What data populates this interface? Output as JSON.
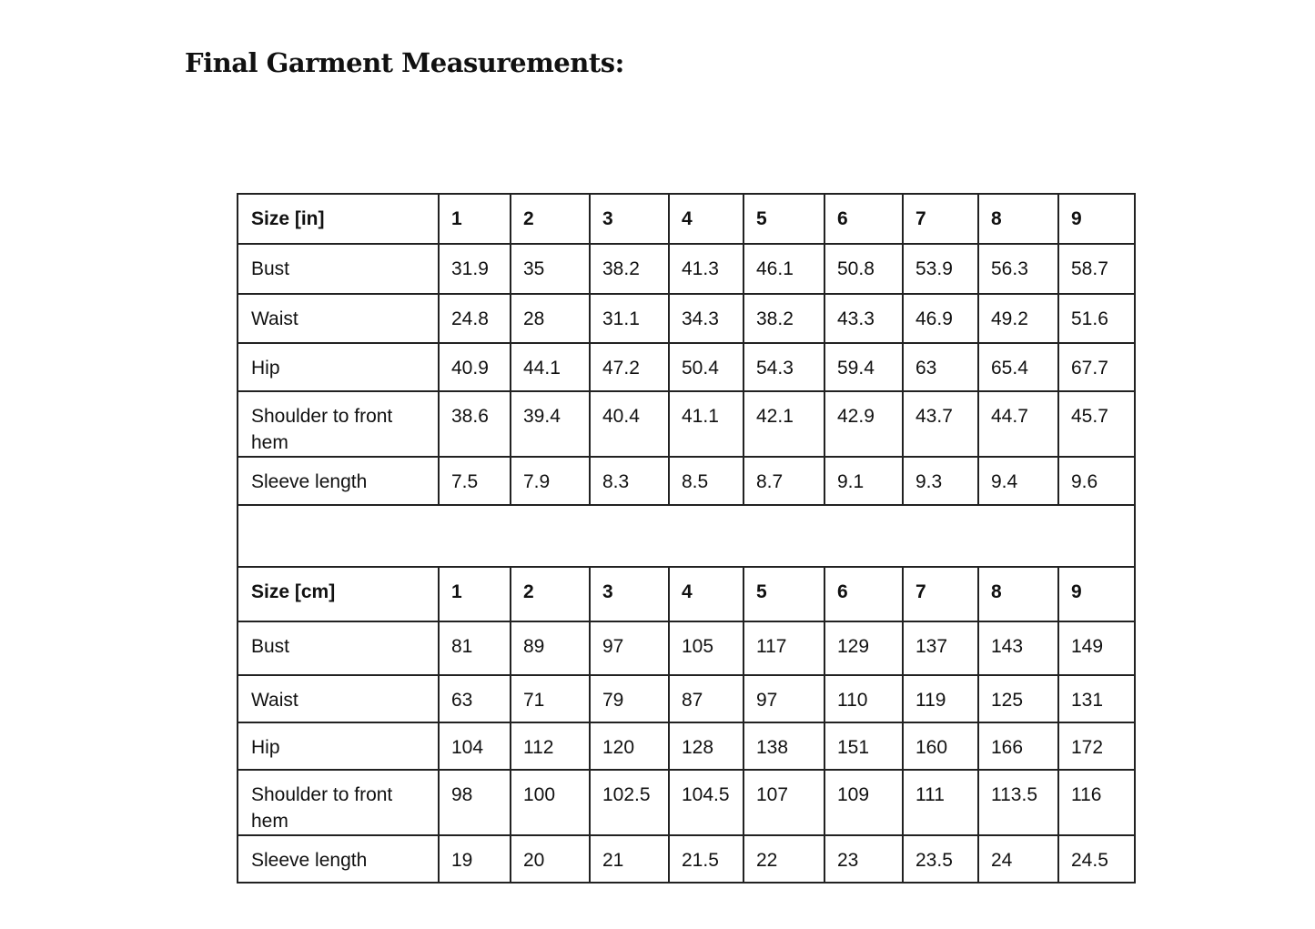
{
  "title": "Final Garment Measurements:",
  "tables": [
    {
      "header": [
        "Size [in]",
        "1",
        "2",
        "3",
        "4",
        "5",
        "6",
        "7",
        "8",
        "9"
      ],
      "rows": [
        [
          "Bust",
          "31.9",
          "35",
          "38.2",
          "41.3",
          "46.1",
          "50.8",
          "53.9",
          "56.3",
          "58.7"
        ],
        [
          "Waist",
          "24.8",
          "28",
          "31.1",
          "34.3",
          "38.2",
          "43.3",
          "46.9",
          "49.2",
          "51.6"
        ],
        [
          "Hip",
          "40.9",
          "44.1",
          "47.2",
          "50.4",
          "54.3",
          "59.4",
          "63",
          "65.4",
          "67.7"
        ],
        [
          "Shoulder to front hem",
          "38.6",
          "39.4",
          "40.4",
          "41.1",
          "42.1",
          "42.9",
          "43.7",
          "44.7",
          "45.7"
        ],
        [
          "Sleeve length",
          "7.5",
          "7.9",
          "8.3",
          "8.5",
          "8.7",
          "9.1",
          "9.3",
          "9.4",
          "9.6"
        ]
      ]
    },
    {
      "header": [
        "Size [cm]",
        "1",
        "2",
        "3",
        "4",
        "5",
        "6",
        "7",
        "8",
        "9"
      ],
      "rows": [
        [
          "Bust",
          "81",
          "89",
          "97",
          "105",
          "117",
          "129",
          "137",
          "143",
          "149"
        ],
        [
          "Waist",
          "63",
          "71",
          "79",
          "87",
          "97",
          "110",
          "119",
          "125",
          "131"
        ],
        [
          "Hip",
          "104",
          "112",
          "120",
          "128",
          "138",
          "151",
          "160",
          "166",
          "172"
        ],
        [
          "Shoulder to front hem",
          "98",
          "100",
          "102.5",
          "104.5",
          "107",
          "109",
          "111",
          "113.5",
          "116"
        ],
        [
          "Sleeve length",
          "19",
          "20",
          "21",
          "21.5",
          "22",
          "23",
          "23.5",
          "24",
          "24.5"
        ]
      ]
    }
  ]
}
